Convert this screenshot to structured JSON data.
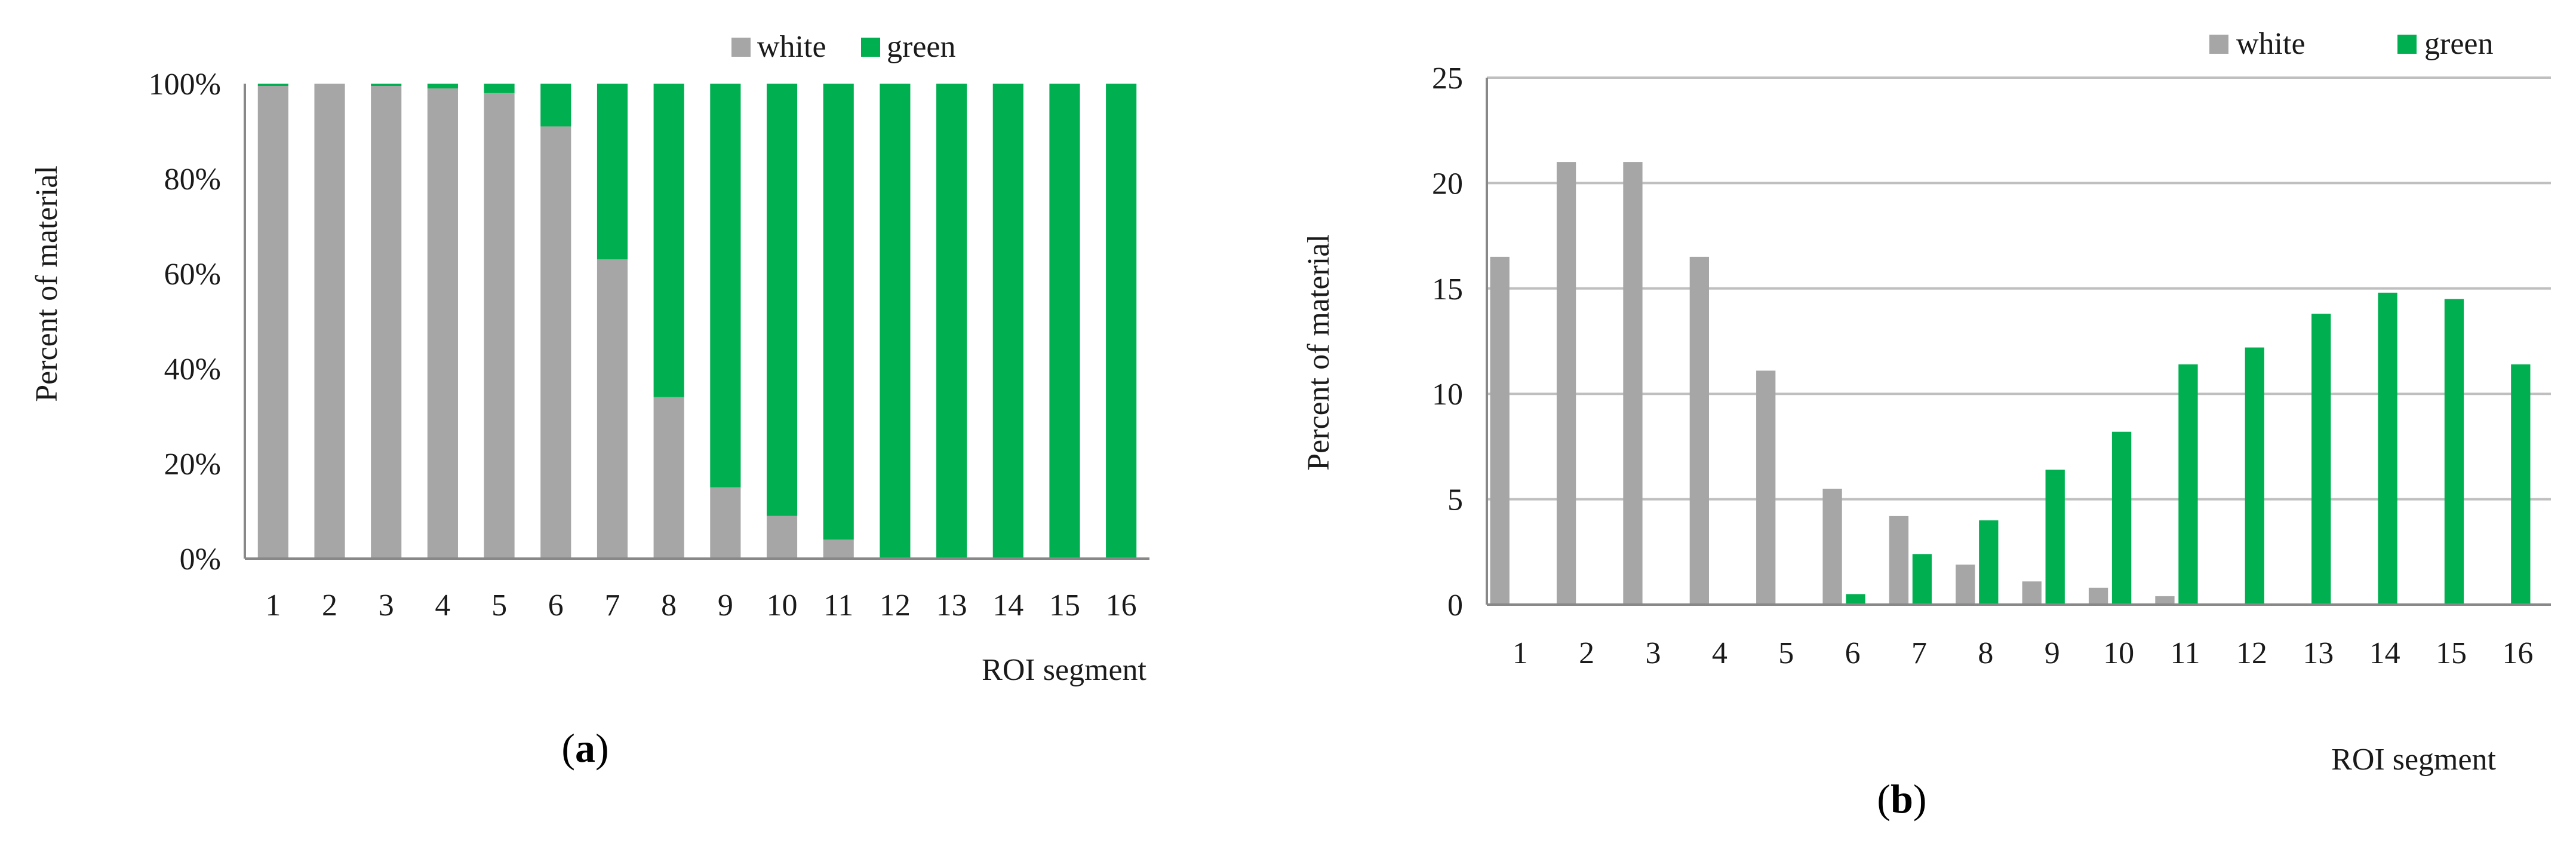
{
  "colors": {
    "white": "#a6a6a6",
    "green": "#00b050",
    "grid": "#bfbfbf",
    "axis": "#888888"
  },
  "chart_data": [
    {
      "type": "bar",
      "stacked": true,
      "panel_label": "a",
      "xlabel": "ROI segment",
      "ylabel": "Percent of material",
      "ylim": [
        0,
        100
      ],
      "yticks": [
        "0%",
        "20%",
        "40%",
        "60%",
        "80%",
        "100%"
      ],
      "grid": false,
      "legend_position": "top-right",
      "categories": [
        "1",
        "2",
        "3",
        "4",
        "5",
        "6",
        "7",
        "8",
        "9",
        "10",
        "11",
        "12",
        "13",
        "14",
        "15",
        "16"
      ],
      "series": [
        {
          "name": "white",
          "values": [
            99.5,
            100,
            99.5,
            99,
            98,
            91,
            63,
            34,
            15,
            9,
            4,
            0,
            0,
            0,
            0,
            0
          ]
        },
        {
          "name": "green",
          "values": [
            0.5,
            0,
            0.5,
            1,
            2,
            9,
            37,
            66,
            85,
            91,
            96,
            100,
            100,
            100,
            100,
            100
          ]
        }
      ]
    },
    {
      "type": "bar",
      "stacked": false,
      "panel_label": "b",
      "xlabel": "ROI segment",
      "ylabel": "Percent of material",
      "ylim": [
        0,
        25
      ],
      "yticks": [
        "0",
        "5",
        "10",
        "15",
        "20",
        "25"
      ],
      "grid": true,
      "legend_position": "top-right",
      "categories": [
        "1",
        "2",
        "3",
        "4",
        "5",
        "6",
        "7",
        "8",
        "9",
        "10",
        "11",
        "12",
        "13",
        "14",
        "15",
        "16"
      ],
      "series": [
        {
          "name": "white",
          "values": [
            16.5,
            21,
            21,
            16.5,
            11.1,
            5.5,
            4.2,
            1.9,
            1.1,
            0.8,
            0.4,
            0,
            0,
            0,
            0,
            0
          ]
        },
        {
          "name": "green",
          "values": [
            0,
            0,
            0,
            0,
            0,
            0.5,
            2.4,
            4.0,
            6.4,
            8.2,
            11.4,
            12.2,
            13.8,
            14.8,
            14.5,
            11.4
          ]
        }
      ]
    }
  ]
}
